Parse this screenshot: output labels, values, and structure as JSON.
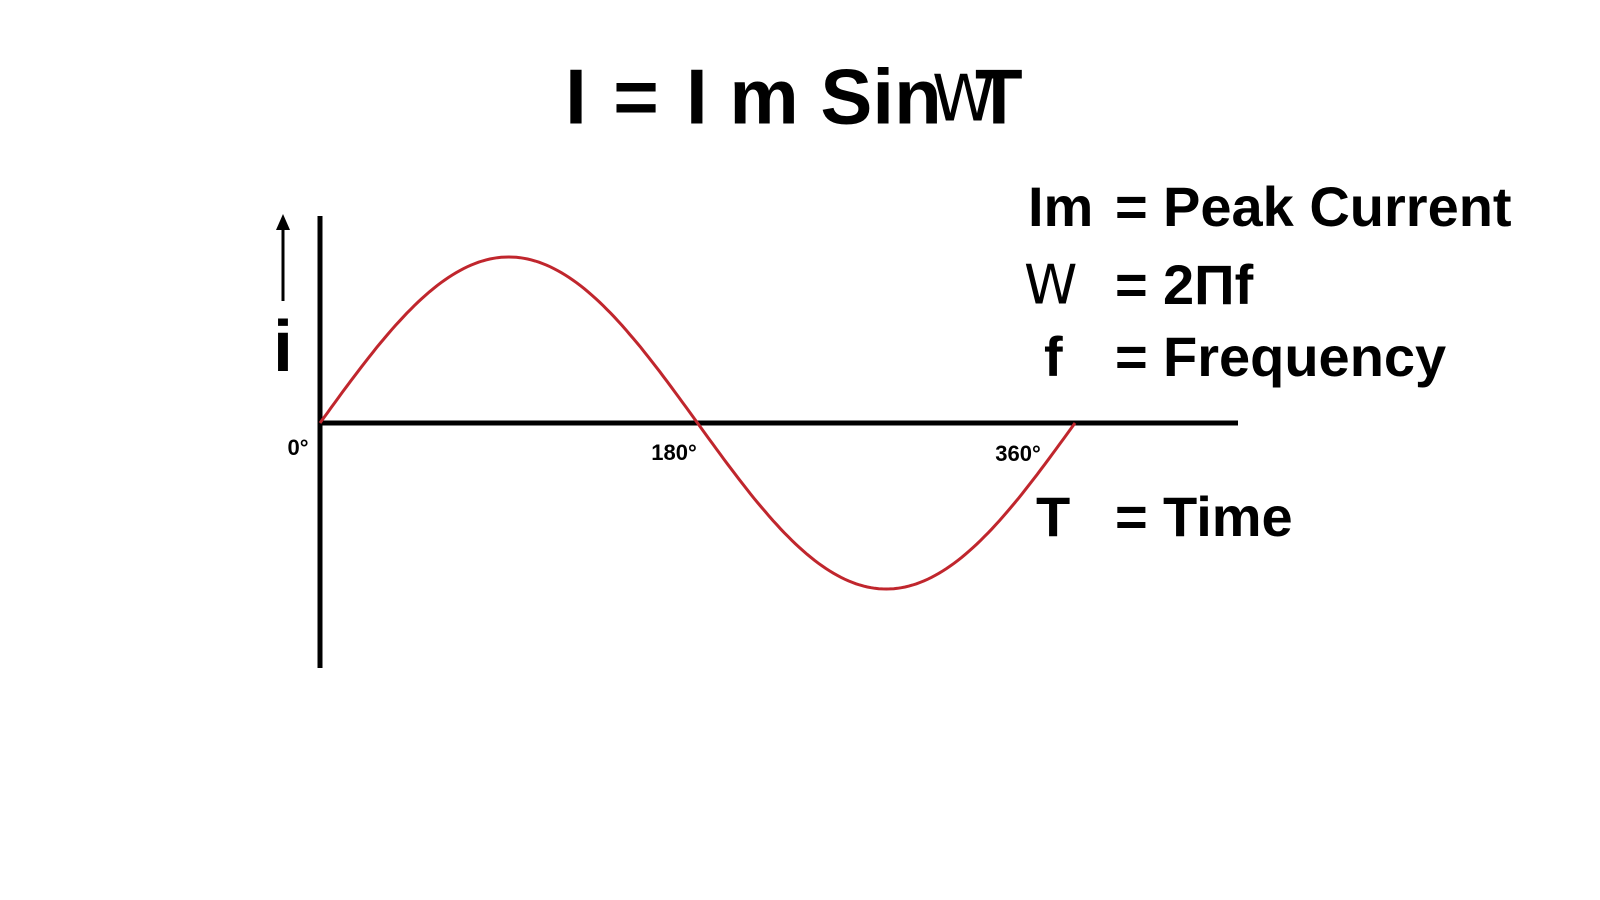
{
  "formula": {
    "parts": [
      "I",
      "=",
      "I m Sin",
      "W",
      "T"
    ]
  },
  "axis": {
    "y_label": "i",
    "x_labels": [
      "0°",
      "180°",
      "360°"
    ]
  },
  "legend": [
    {
      "symbol": "Im",
      "equals": "=",
      "meaning": "Peak Current"
    },
    {
      "symbol": "W",
      "equals": "=",
      "meaning": "2Πf"
    },
    {
      "symbol": "f",
      "equals": "=",
      "meaning": "Frequency"
    },
    {
      "symbol": "T",
      "equals": "=",
      "meaning": "Time"
    }
  ]
}
